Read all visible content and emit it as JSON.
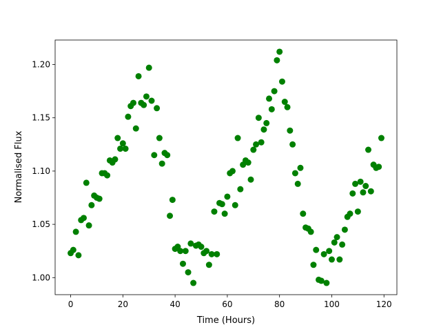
{
  "chart_data": {
    "type": "scatter",
    "title": "",
    "xlabel": "Time (Hours)",
    "ylabel": "Normalised Flux",
    "xlim": [
      -5.95,
      124.95
    ],
    "ylim": [
      0.984,
      1.223
    ],
    "xticks": [
      0,
      20,
      40,
      60,
      80,
      100,
      120
    ],
    "xtick_labels": [
      "0",
      "20",
      "40",
      "60",
      "80",
      "100",
      "120"
    ],
    "yticks": [
      1.0,
      1.05,
      1.1,
      1.15,
      1.2
    ],
    "ytick_labels": [
      "1.00",
      "1.05",
      "1.10",
      "1.15",
      "1.20"
    ],
    "grid": false,
    "marker_color": "#008000",
    "x": [
      0,
      1,
      2,
      3,
      4,
      5,
      6,
      7,
      8,
      9,
      10,
      11,
      12,
      13,
      14,
      15,
      16,
      17,
      18,
      19,
      20,
      21,
      22,
      23,
      24,
      25,
      26,
      27,
      28,
      29,
      30,
      31,
      32,
      33,
      34,
      35,
      36,
      37,
      38,
      39,
      40,
      41,
      42,
      43,
      44,
      45,
      46,
      47,
      48,
      49,
      50,
      51,
      52,
      53,
      54,
      55,
      56,
      57,
      58,
      59,
      60,
      61,
      62,
      63,
      64,
      65,
      66,
      67,
      68,
      69,
      70,
      71,
      72,
      73,
      74,
      75,
      76,
      77,
      78,
      79,
      80,
      81,
      82,
      83,
      84,
      85,
      86,
      87,
      88,
      89,
      90,
      91,
      92,
      93,
      94,
      95,
      96,
      97,
      98,
      99,
      100,
      101,
      102,
      103,
      104,
      105,
      106,
      107,
      108,
      109,
      110,
      111,
      112,
      113,
      114,
      115,
      116,
      117,
      118,
      119
    ],
    "y": [
      1.023,
      1.026,
      1.043,
      1.021,
      1.054,
      1.056,
      1.089,
      1.049,
      1.068,
      1.077,
      1.075,
      1.074,
      1.098,
      1.098,
      1.096,
      1.11,
      1.108,
      1.111,
      1.131,
      1.121,
      1.126,
      1.121,
      1.151,
      1.161,
      1.164,
      1.14,
      1.189,
      1.164,
      1.162,
      1.17,
      1.197,
      1.166,
      1.115,
      1.159,
      1.131,
      1.107,
      1.117,
      1.115,
      1.058,
      1.073,
      1.027,
      1.029,
      1.025,
      1.013,
      1.025,
      1.005,
      1.032,
      0.995,
      1.03,
      1.031,
      1.029,
      1.023,
      1.025,
      1.012,
      1.022,
      1.062,
      1.022,
      1.07,
      1.069,
      1.06,
      1.076,
      1.098,
      1.1,
      1.068,
      1.131,
      1.083,
      1.106,
      1.11,
      1.108,
      1.092,
      1.12,
      1.125,
      1.15,
      1.127,
      1.139,
      1.145,
      1.168,
      1.158,
      1.175,
      1.204,
      1.212,
      1.184,
      1.165,
      1.16,
      1.138,
      1.125,
      1.098,
      1.088,
      1.103,
      1.06,
      1.047,
      1.046,
      1.043,
      1.012,
      1.026,
      0.998,
      0.997,
      1.022,
      0.995,
      1.025,
      1.017,
      1.033,
      1.038,
      1.017,
      1.031,
      1.045,
      1.057,
      1.06,
      1.079,
      1.088,
      1.062,
      1.09,
      1.08,
      1.086,
      1.12,
      1.081,
      1.106,
      1.103,
      1.104,
      1.131
    ]
  }
}
